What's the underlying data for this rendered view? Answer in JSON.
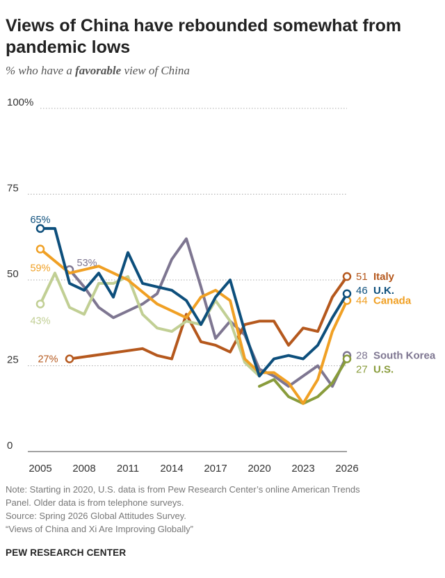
{
  "header": {
    "title": "Views of China have rebounded somewhat from pandemic lows",
    "subtitle_prefix": "% who have a",
    "subtitle_emphasis": "favorable",
    "subtitle_suffix": "view of China"
  },
  "footer": {
    "note_line1": "Note: Starting in 2020, U.S. data is from Pew Research Center’s online American Trends",
    "note_line2": "Panel. Older data is from telephone surveys.",
    "source": "Source: Spring 2026 Global Attitudes Survey.",
    "report": "“Views of China and Xi Are Improving Globally”",
    "brand": "PEW RESEARCH CENTER"
  },
  "chart_data": {
    "type": "line",
    "ylim": [
      0,
      100
    ],
    "xlim": [
      2005,
      2026
    ],
    "y_ticks": [
      {
        "value": 100,
        "label": "100%"
      },
      {
        "value": 75,
        "label": "75"
      },
      {
        "value": 50,
        "label": "50"
      },
      {
        "value": 25,
        "label": "25"
      },
      {
        "value": 0,
        "label": "0"
      }
    ],
    "x_ticks": [
      {
        "value": 2005,
        "label": "2005"
      },
      {
        "value": 2008,
        "label": "2008"
      },
      {
        "value": 2011,
        "label": "2011"
      },
      {
        "value": 2014,
        "label": "2014"
      },
      {
        "value": 2017,
        "label": "2017"
      },
      {
        "value": 2020,
        "label": "2020"
      },
      {
        "value": 2023,
        "label": "2023"
      },
      {
        "value": 2026,
        "label": "2026"
      }
    ],
    "grid": "dotted horizontal",
    "series": [
      {
        "name": "South Korea",
        "color": "#7e7691",
        "start_label": "53%",
        "end_value_label": "28",
        "points": [
          [
            2007,
            53
          ],
          [
            2008,
            48
          ],
          [
            2009,
            42
          ],
          [
            2010,
            39
          ],
          [
            2011,
            41
          ],
          [
            2012,
            43
          ],
          [
            2013,
            46
          ],
          [
            2014,
            56
          ],
          [
            2015,
            62
          ],
          [
            2016,
            48
          ],
          [
            2017,
            33
          ],
          [
            2018,
            38
          ],
          [
            2019,
            34
          ],
          [
            2020,
            24
          ],
          [
            2021,
            22
          ],
          [
            2022,
            19
          ],
          [
            2023,
            22
          ],
          [
            2024,
            25
          ],
          [
            2025,
            19
          ],
          [
            2026,
            28
          ]
        ]
      },
      {
        "name": "Italy",
        "color": "#b5581d",
        "start_label": "27%",
        "end_value_label": "51",
        "points": [
          [
            2007,
            27
          ],
          [
            2012,
            30
          ],
          [
            2013,
            28
          ],
          [
            2014,
            27
          ],
          [
            2015,
            40
          ],
          [
            2016,
            32
          ],
          [
            2017,
            31
          ],
          [
            2018,
            29
          ],
          [
            2019,
            37
          ],
          [
            2020,
            38
          ],
          [
            2021,
            38
          ],
          [
            2022,
            31
          ],
          [
            2023,
            36
          ],
          [
            2024,
            35
          ],
          [
            2025,
            45
          ],
          [
            2026,
            51
          ]
        ]
      },
      {
        "name": "U.S.",
        "color": "#899c3c",
        "start_label": "",
        "end_value_label": "27",
        "points": [
          [
            2020,
            19
          ],
          [
            2021,
            21
          ],
          [
            2022,
            16
          ],
          [
            2023,
            14
          ],
          [
            2024,
            16
          ],
          [
            2025,
            20
          ],
          [
            2026,
            27
          ]
        ]
      },
      {
        "name": "U.S. (telephone)",
        "color": "#c1cf94",
        "start_label": "43%",
        "end_value_label": "",
        "points": [
          [
            2005,
            43
          ],
          [
            2006,
            52
          ],
          [
            2007,
            42
          ],
          [
            2008,
            40
          ],
          [
            2009,
            49
          ],
          [
            2010,
            49
          ],
          [
            2011,
            51
          ],
          [
            2012,
            40
          ],
          [
            2013,
            36
          ],
          [
            2014,
            35
          ],
          [
            2015,
            38
          ],
          [
            2016,
            37
          ],
          [
            2017,
            44
          ],
          [
            2018,
            38
          ],
          [
            2019,
            26
          ],
          [
            2020,
            22
          ]
        ]
      },
      {
        "name": "Canada",
        "color": "#f0a024",
        "start_label": "59%",
        "end_value_label": "44",
        "points": [
          [
            2005,
            59
          ],
          [
            2007,
            52
          ],
          [
            2009,
            54
          ],
          [
            2010,
            52
          ],
          [
            2011,
            50
          ],
          [
            2013,
            43
          ],
          [
            2015,
            39
          ],
          [
            2016,
            45
          ],
          [
            2017,
            47
          ],
          [
            2018,
            44
          ],
          [
            2019,
            27
          ],
          [
            2020,
            23
          ],
          [
            2021,
            23
          ],
          [
            2022,
            20
          ],
          [
            2023,
            14
          ],
          [
            2024,
            21
          ],
          [
            2025,
            35
          ],
          [
            2026,
            44
          ]
        ]
      },
      {
        "name": "U.K.",
        "color": "#0d4f7c",
        "start_label": "65%",
        "end_value_label": "46",
        "points": [
          [
            2005,
            65
          ],
          [
            2006,
            65
          ],
          [
            2007,
            49
          ],
          [
            2008,
            47
          ],
          [
            2009,
            52
          ],
          [
            2010,
            45
          ],
          [
            2011,
            58
          ],
          [
            2012,
            49
          ],
          [
            2013,
            48
          ],
          [
            2014,
            47
          ],
          [
            2015,
            44
          ],
          [
            2016,
            37
          ],
          [
            2017,
            45
          ],
          [
            2018,
            50
          ],
          [
            2019,
            35
          ],
          [
            2020,
            22
          ],
          [
            2021,
            27
          ],
          [
            2022,
            28
          ],
          [
            2023,
            27
          ],
          [
            2024,
            31
          ],
          [
            2025,
            39
          ],
          [
            2026,
            46
          ]
        ]
      }
    ]
  }
}
